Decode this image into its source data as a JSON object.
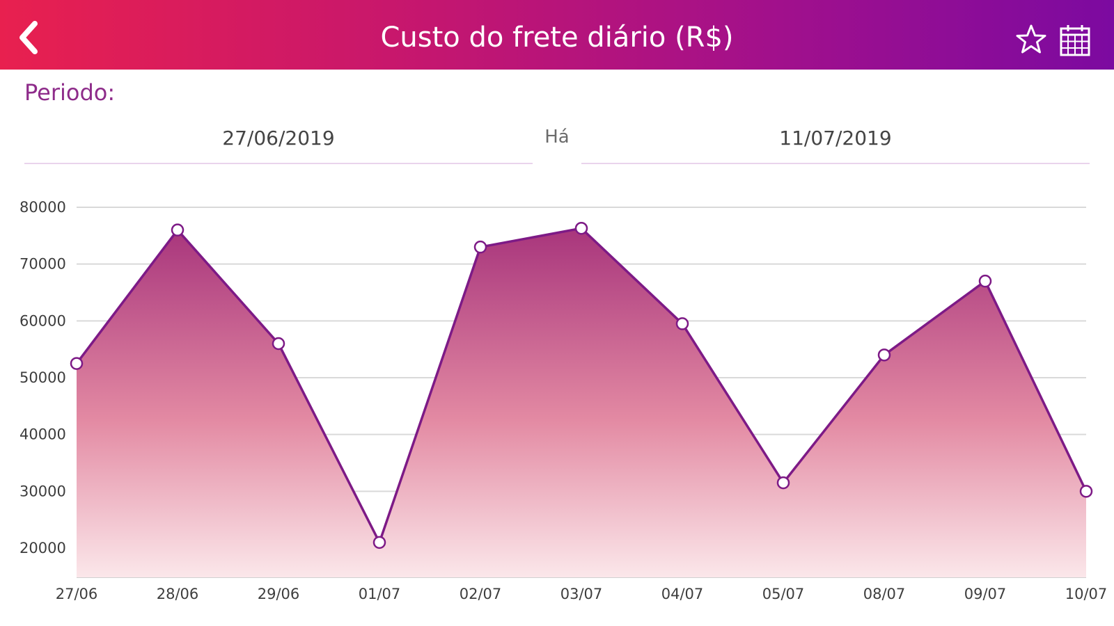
{
  "header": {
    "title": "Custo do frete diário (R$)",
    "back_icon": "chevron-left-icon",
    "favorite_icon": "star-icon",
    "calendar_icon": "calendar-icon"
  },
  "period": {
    "label": "Periodo:",
    "start_date": "27/06/2019",
    "separator": "Há",
    "end_date": "11/07/2019"
  },
  "colors": {
    "header_start": "#e8204f",
    "header_end": "#7c0aa0",
    "line": "#7d1a86",
    "fill_top": "#a8357c",
    "fill_bottom": "#fbe7ea",
    "accent_text": "#8e2c8a"
  },
  "chart_data": {
    "type": "area",
    "categories": [
      "27/06",
      "28/06",
      "29/06",
      "01/07",
      "02/07",
      "03/07",
      "04/07",
      "05/07",
      "08/07",
      "09/07",
      "10/07"
    ],
    "values": [
      52500,
      76000,
      56000,
      21000,
      73000,
      76300,
      59500,
      31500,
      54000,
      67000,
      30000
    ],
    "yticks": [
      20000,
      30000,
      40000,
      50000,
      60000,
      70000,
      80000
    ],
    "ylim": [
      15000,
      80000
    ],
    "grid": true,
    "xlabel": "",
    "ylabel": ""
  }
}
